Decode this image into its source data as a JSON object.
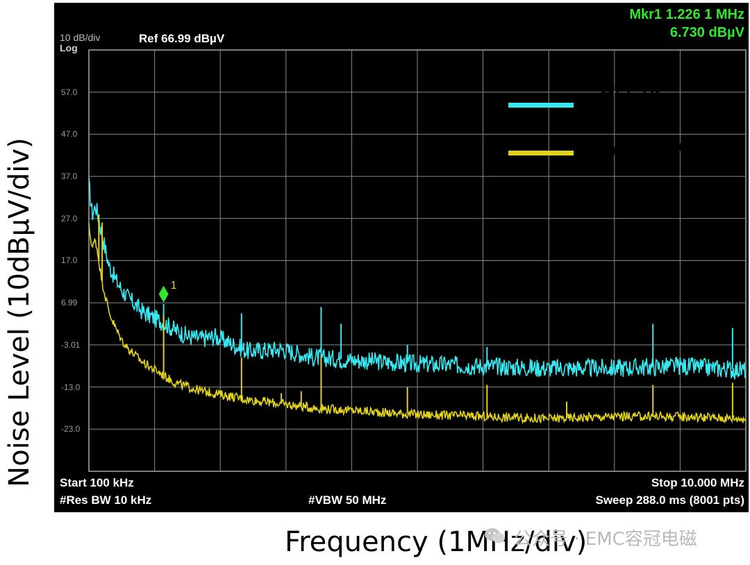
{
  "figure": {
    "y_axis_title": "Noise Level (10dBµV/div)",
    "x_axis_title": "Frequency (1MHz/div)",
    "watermark": "公众号 · EMC容冠电磁"
  },
  "analyzer": {
    "scale": "10 dB/div",
    "scale_type": "Log",
    "ref_level": "Ref 66.99 dBµV",
    "marker_freq": "Mkr1 1.226 1 MHz",
    "marker_level": "6.730 dBµV",
    "marker_label": "1",
    "start": "Start 100 kHz",
    "stop": "Stop 10.000 MHz",
    "rbw": "#Res BW 10 kHz",
    "vbw": "#VBW 50 MHz",
    "sweep": "Sweep  288.0 ms (8001 pts)"
  },
  "legend": [
    {
      "label": "Peak",
      "color": "#38e8f0"
    },
    {
      "label": "Average",
      "color": "#e3d21c"
    }
  ],
  "chart_data": {
    "type": "line",
    "xlabel": "Frequency (1MHz/div)",
    "ylabel": "Noise Level (10dBµV/div)",
    "x_unit": "MHz",
    "y_unit": "dBµV",
    "xlim": [
      0.1,
      10.0
    ],
    "ylim": [
      -33.01,
      66.99
    ],
    "yticks": [
      "57.0",
      "47.0",
      "37.0",
      "27.0",
      "17.0",
      "6.99",
      "-3.01",
      "-13.0",
      "-23.0"
    ],
    "ytick_values": [
      57.0,
      47.0,
      37.0,
      27.0,
      17.0,
      6.99,
      -3.01,
      -13.0,
      -23.0
    ],
    "grid": true,
    "legend_position": "top-right",
    "marker": {
      "x": 1.2261,
      "y": 6.73,
      "label": "1",
      "color": "#2fe82f"
    },
    "series": [
      {
        "name": "Peak",
        "color": "#38e8f0",
        "x": [
          0.1,
          0.15,
          0.2,
          0.25,
          0.3,
          0.4,
          0.5,
          0.6,
          0.7,
          0.8,
          0.9,
          1.0,
          1.2,
          1.4,
          1.6,
          1.8,
          2.0,
          2.5,
          3.0,
          3.5,
          4.0,
          4.5,
          5.0,
          6.0,
          7.0,
          8.0,
          9.0,
          10.0
        ],
        "y": [
          35.0,
          28.0,
          30.0,
          27.0,
          23.0,
          16.0,
          12.5,
          10.0,
          8.0,
          6.5,
          5.0,
          4.0,
          2.5,
          0.5,
          -1.0,
          -1.5,
          -1.0,
          -4.5,
          -4.0,
          -6.0,
          -6.5,
          -7.0,
          -7.5,
          -8.0,
          -8.5,
          -8.5,
          -8.0,
          -9.0
        ],
        "spikes": [
          {
            "x": 1.2261,
            "y": 6.73
          },
          {
            "x": 2.4,
            "y": 4.5
          },
          {
            "x": 3.6,
            "y": 6.0
          },
          {
            "x": 3.9,
            "y": 2.0
          },
          {
            "x": 4.9,
            "y": -3.0
          },
          {
            "x": 6.1,
            "y": -3.5
          },
          {
            "x": 8.6,
            "y": 2.0
          },
          {
            "x": 9.8,
            "y": 1.0
          }
        ]
      },
      {
        "name": "Average",
        "color": "#e3d21c",
        "x": [
          0.1,
          0.15,
          0.2,
          0.25,
          0.3,
          0.4,
          0.5,
          0.6,
          0.7,
          0.8,
          0.9,
          1.0,
          1.2,
          1.4,
          1.6,
          1.8,
          2.0,
          2.5,
          3.0,
          3.5,
          4.0,
          4.5,
          5.0,
          6.0,
          7.0,
          8.0,
          9.0,
          10.0
        ],
        "y": [
          25.0,
          20.0,
          22.0,
          17.0,
          12.0,
          5.0,
          1.0,
          -2.0,
          -4.0,
          -5.5,
          -7.0,
          -8.0,
          -10.0,
          -12.0,
          -13.0,
          -14.0,
          -14.5,
          -16.0,
          -17.0,
          -18.0,
          -18.5,
          -19.0,
          -19.5,
          -20.0,
          -20.5,
          -20.0,
          -20.0,
          -20.5
        ],
        "spikes": [
          {
            "x": 0.25,
            "y": 28.0
          },
          {
            "x": 0.3,
            "y": 26.0
          },
          {
            "x": 1.2261,
            "y": 4.0
          },
          {
            "x": 2.4,
            "y": -6.0
          },
          {
            "x": 3.0,
            "y": -14.5
          },
          {
            "x": 3.3,
            "y": -14.0
          },
          {
            "x": 3.6,
            "y": -6.0
          },
          {
            "x": 4.9,
            "y": -13.0
          },
          {
            "x": 6.1,
            "y": -12.5
          },
          {
            "x": 7.3,
            "y": -16.5
          },
          {
            "x": 8.6,
            "y": -12.5
          },
          {
            "x": 9.8,
            "y": -12.0
          }
        ]
      }
    ]
  }
}
